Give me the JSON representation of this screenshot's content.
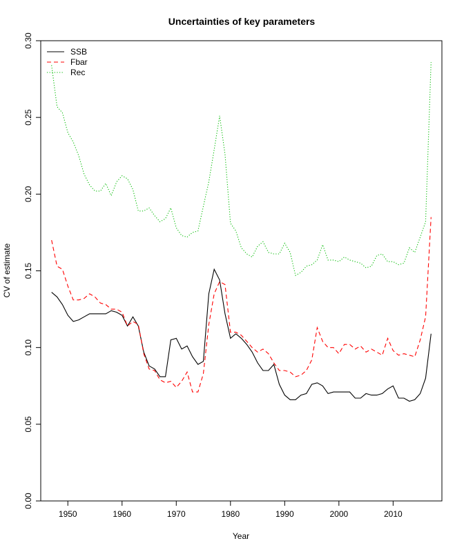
{
  "chart_data": {
    "type": "line",
    "title": "Uncertainties of key parameters",
    "xlabel": "Year",
    "ylabel": "CV of estimate",
    "xlim": [
      1945,
      2019
    ],
    "ylim": [
      0,
      0.3
    ],
    "x_ticks": [
      1950,
      1960,
      1970,
      1980,
      1990,
      2000,
      2010
    ],
    "y_ticks": [
      0.0,
      0.05,
      0.1,
      0.15,
      0.2,
      0.25,
      0.3
    ],
    "x_tick_labels": [
      "1950",
      "1960",
      "1970",
      "1980",
      "1990",
      "2000",
      "2010"
    ],
    "y_tick_labels": [
      "0.00",
      "0.05",
      "0.10",
      "0.15",
      "0.20",
      "0.25",
      "0.30"
    ],
    "grid": false,
    "legend_position": "top-left",
    "x": [
      1947,
      1948,
      1949,
      1950,
      1951,
      1952,
      1953,
      1954,
      1955,
      1956,
      1957,
      1958,
      1959,
      1960,
      1961,
      1962,
      1963,
      1964,
      1965,
      1966,
      1967,
      1968,
      1969,
      1970,
      1971,
      1972,
      1973,
      1974,
      1975,
      1976,
      1977,
      1978,
      1979,
      1980,
      1981,
      1982,
      1983,
      1984,
      1985,
      1986,
      1987,
      1988,
      1989,
      1990,
      1991,
      1992,
      1993,
      1994,
      1995,
      1996,
      1997,
      1998,
      1999,
      2000,
      2001,
      2002,
      2003,
      2004,
      2005,
      2006,
      2007,
      2008,
      2009,
      2010,
      2011,
      2012,
      2013,
      2014,
      2015,
      2016,
      2017
    ],
    "series": [
      {
        "name": "SSB",
        "color": "#000000",
        "dash": "solid",
        "values": [
          0.136,
          0.133,
          0.128,
          0.121,
          0.117,
          0.118,
          0.12,
          0.122,
          0.122,
          0.122,
          0.122,
          0.124,
          0.123,
          0.121,
          0.114,
          0.12,
          0.114,
          0.097,
          0.088,
          0.086,
          0.081,
          0.081,
          0.105,
          0.106,
          0.099,
          0.101,
          0.094,
          0.089,
          0.091,
          0.135,
          0.151,
          0.144,
          0.122,
          0.106,
          0.109,
          0.106,
          0.102,
          0.097,
          0.09,
          0.085,
          0.085,
          0.089,
          0.076,
          0.069,
          0.066,
          0.066,
          0.069,
          0.07,
          0.076,
          0.077,
          0.075,
          0.07,
          0.071,
          0.071,
          0.071,
          0.071,
          0.067,
          0.067,
          0.07,
          0.069,
          0.069,
          0.07,
          0.073,
          0.075,
          0.067,
          0.067,
          0.065,
          0.066,
          0.07,
          0.08,
          0.109
        ]
      },
      {
        "name": "Fbar",
        "color": "#ff0000",
        "dash": "dashed",
        "values": [
          0.17,
          0.153,
          0.151,
          0.14,
          0.131,
          0.131,
          0.132,
          0.135,
          0.133,
          0.129,
          0.128,
          0.125,
          0.125,
          0.123,
          0.114,
          0.117,
          0.115,
          0.096,
          0.086,
          0.085,
          0.079,
          0.077,
          0.078,
          0.074,
          0.078,
          0.084,
          0.071,
          0.071,
          0.083,
          0.115,
          0.135,
          0.143,
          0.141,
          0.11,
          0.11,
          0.108,
          0.104,
          0.1,
          0.097,
          0.099,
          0.096,
          0.09,
          0.085,
          0.085,
          0.084,
          0.081,
          0.082,
          0.085,
          0.092,
          0.113,
          0.104,
          0.1,
          0.1,
          0.096,
          0.102,
          0.102,
          0.099,
          0.101,
          0.097,
          0.099,
          0.097,
          0.095,
          0.106,
          0.098,
          0.095,
          0.096,
          0.095,
          0.094,
          0.105,
          0.12,
          0.185
        ]
      },
      {
        "name": "Rec",
        "color": "#00bb00",
        "dash": "dotted",
        "values": [
          0.284,
          0.257,
          0.253,
          0.24,
          0.234,
          0.225,
          0.213,
          0.206,
          0.202,
          0.202,
          0.207,
          0.199,
          0.208,
          0.212,
          0.21,
          0.203,
          0.189,
          0.189,
          0.191,
          0.186,
          0.182,
          0.184,
          0.191,
          0.178,
          0.173,
          0.172,
          0.175,
          0.176,
          0.192,
          0.208,
          0.229,
          0.251,
          0.226,
          0.181,
          0.176,
          0.165,
          0.161,
          0.159,
          0.166,
          0.169,
          0.162,
          0.161,
          0.161,
          0.168,
          0.162,
          0.147,
          0.149,
          0.153,
          0.154,
          0.157,
          0.167,
          0.157,
          0.157,
          0.156,
          0.159,
          0.157,
          0.156,
          0.155,
          0.152,
          0.153,
          0.16,
          0.161,
          0.156,
          0.156,
          0.154,
          0.155,
          0.165,
          0.162,
          0.172,
          0.182,
          0.286
        ]
      }
    ]
  }
}
